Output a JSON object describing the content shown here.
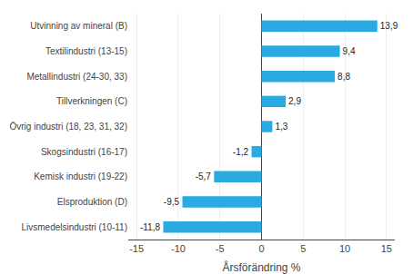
{
  "chart_data": {
    "type": "bar",
    "orientation": "horizontal",
    "categories": [
      "Livsmedelsindustri (10-11)",
      "Elsproduktion (D)",
      "Kemisk industri (19-22)",
      "Skogsindustri (16-17)",
      "Övrig industri (18, 23, 31, 32)",
      "Tillverkningen (C)",
      "Metallindustri (24-30, 33)",
      "Textilindustri (13-15)",
      "Utvinning av mineral (B)"
    ],
    "values": [
      -11.8,
      -9.5,
      -5.7,
      -1.2,
      1.3,
      2.9,
      8.8,
      9.4,
      13.9
    ],
    "value_labels": [
      "-11,8",
      "-9,5",
      "-5,7",
      "-1,2",
      "1,3",
      "2,9",
      "8,8",
      "9,4",
      "13,9"
    ],
    "data_labels": true,
    "color": "#29ABE2",
    "xlabel": "Årsförändring %",
    "xlim": [
      -16,
      16
    ],
    "xticks": [
      -15,
      -10,
      -5,
      0,
      5,
      10,
      15
    ],
    "grid": true
  }
}
